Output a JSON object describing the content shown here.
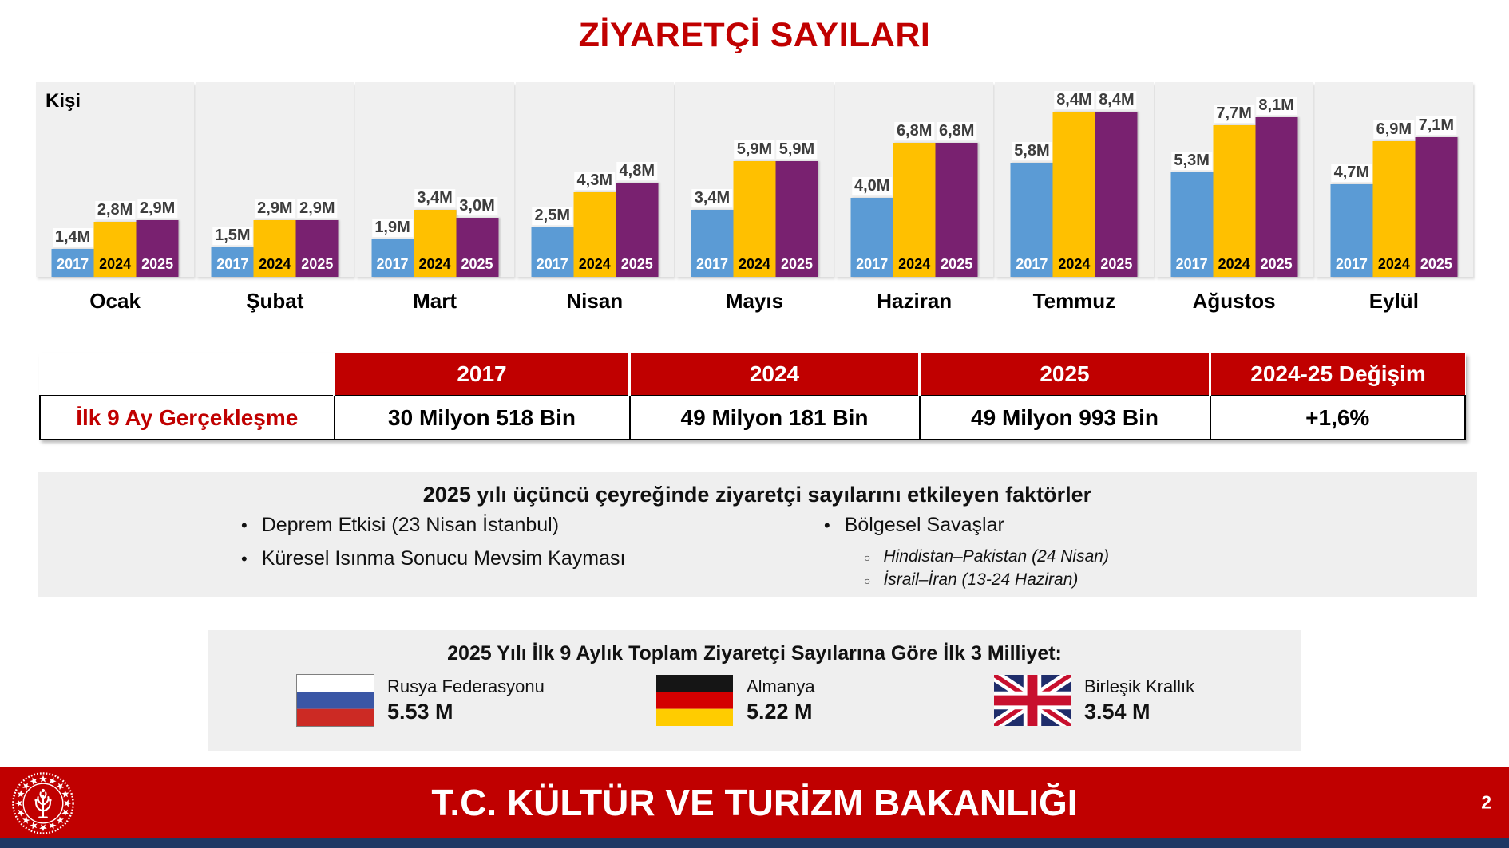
{
  "slide": {
    "title": "ZİYARETÇİ SAYILARI",
    "page_number": "2"
  },
  "chart_data": {
    "type": "bar",
    "title": "ZİYARETÇİ SAYILARI",
    "ylabel": "Kişi",
    "ylim": [
      0,
      8.4
    ],
    "grid": false,
    "legend_position": "inside-bars",
    "categories": [
      "Ocak",
      "Şubat",
      "Mart",
      "Nisan",
      "Mayıs",
      "Haziran",
      "Temmuz",
      "Ağustos",
      "Eylül"
    ],
    "series": [
      {
        "name": "2017",
        "color": "#5B9BD5",
        "year_label_color": "#ffffff",
        "values": [
          1.4,
          1.5,
          1.9,
          2.5,
          3.4,
          4.0,
          5.8,
          5.3,
          4.7
        ],
        "labels": [
          "1,4M",
          "1,5M",
          "1,9M",
          "2,5M",
          "3,4M",
          "4,0M",
          "5,8M",
          "5,3M",
          "4,7M"
        ]
      },
      {
        "name": "2024",
        "color": "#FFC000",
        "year_label_color": "#000000",
        "values": [
          2.8,
          2.9,
          3.4,
          4.3,
          5.9,
          6.8,
          8.4,
          7.7,
          6.9
        ],
        "labels": [
          "2,8M",
          "2,9M",
          "3,4M",
          "4,3M",
          "5,9M",
          "6,8M",
          "8,4M",
          "7,7M",
          "6,9M"
        ]
      },
      {
        "name": "2025",
        "color": "#792170",
        "year_label_color": "#ffffff",
        "values": [
          2.9,
          2.9,
          3.0,
          4.8,
          5.9,
          6.8,
          8.4,
          8.1,
          7.1
        ],
        "labels": [
          "2,9M",
          "2,9M",
          "3,0M",
          "4,8M",
          "5,9M",
          "6,8M",
          "8,4M",
          "8,1M",
          "7,1M"
        ]
      }
    ]
  },
  "table": {
    "headers": [
      "2017",
      "2024",
      "2025",
      "2024-25 Değişim"
    ],
    "row_label": "İlk 9 Ay Gerçekleşme",
    "values": [
      "30 Milyon 518 Bin",
      "49 Milyon 181 Bin",
      "49 Milyon 993 Bin",
      "+1,6%"
    ]
  },
  "factors": {
    "title": "2025 yılı üçüncü çeyreğinde ziyaretçi sayılarını etkileyen faktörler",
    "left_bullets": [
      "Deprem Etkisi (23 Nisan İstanbul)",
      "Küresel Isınma Sonucu Mevsim Kayması"
    ],
    "right_bullet": "Bölgesel Savaşlar",
    "right_sub_bullets": [
      "Hindistan–Pakistan (24 Nisan)",
      "İsrail–İran (13-24 Haziran)"
    ]
  },
  "nationalities": {
    "title": "2025 Yılı İlk 9 Aylık Toplam Ziyaretçi Sayılarına Göre İlk 3 Milliyet:",
    "items": [
      {
        "flag": "russia-flag",
        "name": "Rusya Federasyonu",
        "value": "5.53 M"
      },
      {
        "flag": "germany-flag",
        "name": "Almanya",
        "value": "5.22 M"
      },
      {
        "flag": "uk-flag",
        "name": "Birleşik Krallık",
        "value": "3.54 M"
      }
    ]
  },
  "footer": {
    "title": "T.C. KÜLTÜR VE TURİZM BAKANLIĞI"
  },
  "colors": {
    "accent_red": "#C00000",
    "bar_2017": "#5B9BD5",
    "bar_2024": "#FFC000",
    "bar_2025": "#792170",
    "panel_gray": "#F0F0F0",
    "box_gray": "#EFEFEF",
    "footer_strip_navy": "#1F3864"
  }
}
